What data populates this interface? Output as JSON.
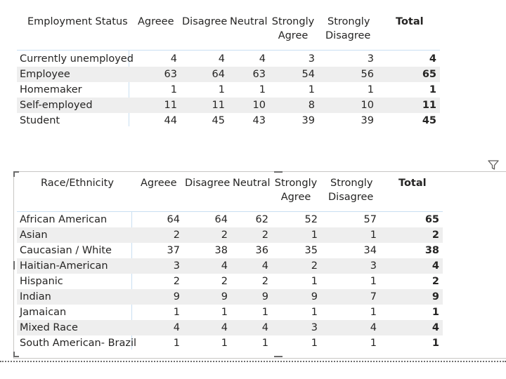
{
  "table1": {
    "headers": [
      {
        "label": "Employment Status",
        "label2": ""
      },
      {
        "label": "Agreee",
        "label2": ""
      },
      {
        "label": "Disagree",
        "label2": ""
      },
      {
        "label": "Neutral",
        "label2": ""
      },
      {
        "label": "Strongly",
        "label2": "Agree"
      },
      {
        "label": "Strongly",
        "label2": "Disagree"
      },
      {
        "label": "Total",
        "label2": ""
      }
    ],
    "rows": [
      {
        "label": "Currently unemployed",
        "values": [
          "4",
          "4",
          "4",
          "3",
          "3"
        ],
        "total": "4"
      },
      {
        "label": "Employee",
        "values": [
          "63",
          "64",
          "63",
          "54",
          "56"
        ],
        "total": "65"
      },
      {
        "label": "Homemaker",
        "values": [
          "1",
          "1",
          "1",
          "1",
          "1"
        ],
        "total": "1"
      },
      {
        "label": "Self-employed",
        "values": [
          "11",
          "11",
          "10",
          "8",
          "10"
        ],
        "total": "11"
      },
      {
        "label": "Student",
        "values": [
          "44",
          "45",
          "43",
          "39",
          "39"
        ],
        "total": "45"
      }
    ]
  },
  "table2": {
    "headers": [
      {
        "label": "Race/Ethnicity",
        "label2": ""
      },
      {
        "label": "Agreee",
        "label2": ""
      },
      {
        "label": "Disagree",
        "label2": ""
      },
      {
        "label": "Neutral",
        "label2": ""
      },
      {
        "label": "Strongly",
        "label2": "Agree"
      },
      {
        "label": "Strongly",
        "label2": "Disagree"
      },
      {
        "label": "Total",
        "label2": ""
      }
    ],
    "rows": [
      {
        "label": "African American",
        "values": [
          "64",
          "64",
          "62",
          "52",
          "57"
        ],
        "total": "65"
      },
      {
        "label": "Asian",
        "values": [
          "2",
          "2",
          "2",
          "1",
          "1"
        ],
        "total": "2"
      },
      {
        "label": "Caucasian / White",
        "values": [
          "37",
          "38",
          "36",
          "35",
          "34"
        ],
        "total": "38"
      },
      {
        "label": "Haitian-American",
        "values": [
          "3",
          "4",
          "4",
          "2",
          "3"
        ],
        "total": "4"
      },
      {
        "label": "Hispanic",
        "values": [
          "2",
          "2",
          "2",
          "1",
          "1"
        ],
        "total": "2"
      },
      {
        "label": "Indian",
        "values": [
          "9",
          "9",
          "9",
          "9",
          "7"
        ],
        "total": "9"
      },
      {
        "label": "Jamaican",
        "values": [
          "1",
          "1",
          "1",
          "1",
          "1"
        ],
        "total": "1"
      },
      {
        "label": "Mixed Race",
        "values": [
          "4",
          "4",
          "4",
          "3",
          "4"
        ],
        "total": "4"
      },
      {
        "label": "South American- Brazil",
        "values": [
          "1",
          "1",
          "1",
          "1",
          "1"
        ],
        "total": "1"
      }
    ]
  },
  "icons": {
    "filter": "filter-icon"
  }
}
